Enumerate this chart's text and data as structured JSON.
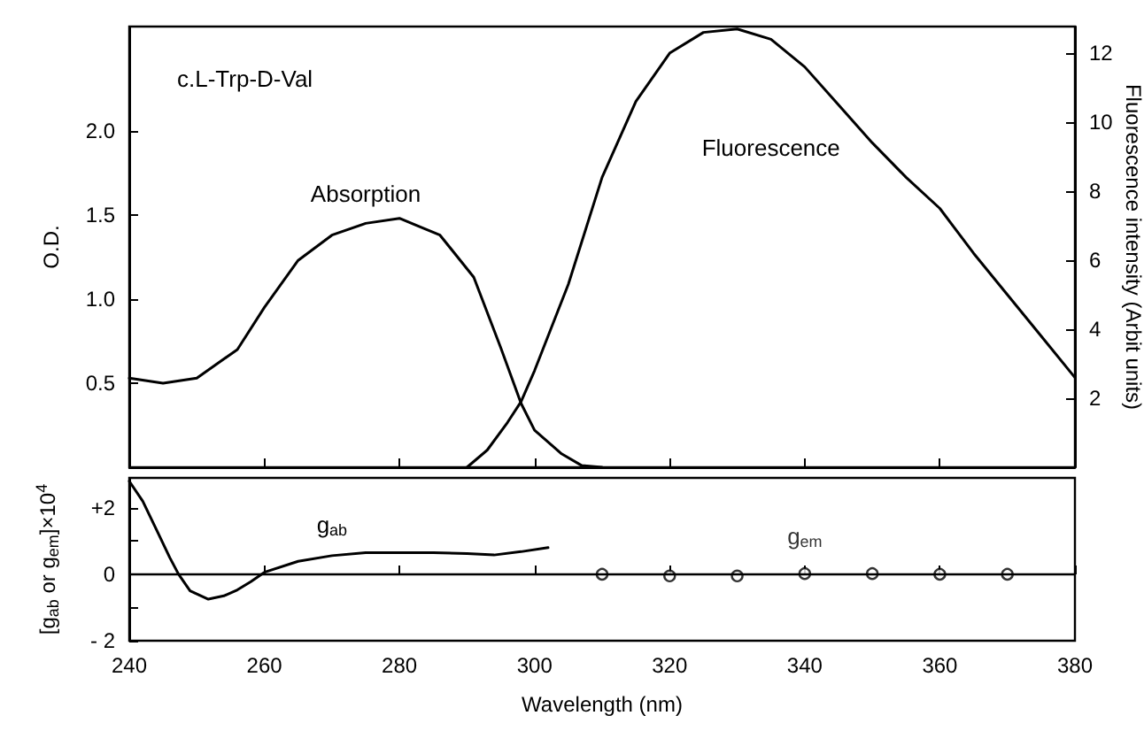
{
  "chart_data": [
    {
      "type": "line",
      "ylabel": "O.D.",
      "y2label": "Fluorescence intensity (Arbit units)",
      "annotations": [
        "c.L-Trp-D-Val"
      ],
      "xlim": [
        240,
        380
      ],
      "xticks": [
        240,
        260,
        280,
        300,
        320,
        340,
        360,
        380
      ],
      "ylim": [
        0,
        2.62
      ],
      "yticks": [
        0.5,
        {
          "value": 1,
          "label": "1.0"
        },
        1.5,
        {
          "value": 2,
          "label": "2.0"
        }
      ],
      "y2lim": [
        0,
        12.77
      ],
      "y2ticks": [
        2,
        4,
        6,
        8,
        10,
        12
      ],
      "tick_labels": "y",
      "marker": "none",
      "line_style": "solid",
      "series": [
        {
          "name": "Absorption",
          "color": "#000000",
          "x": [
            240,
            245,
            250,
            256,
            260,
            265,
            270,
            275,
            280,
            286,
            291,
            295,
            298,
            300,
            304,
            307,
            310
          ],
          "values": [
            0.53,
            0.5,
            0.53,
            0.7,
            0.95,
            1.23,
            1.38,
            1.45,
            1.48,
            1.38,
            1.13,
            0.71,
            0.38,
            0.22,
            0.08,
            0.01,
            0
          ]
        },
        {
          "name": "Fluorescence",
          "color": "#000000",
          "axis": "y2",
          "x": [
            290,
            293,
            296,
            298,
            300,
            305,
            310,
            315,
            320,
            325,
            330,
            335,
            340,
            345,
            350,
            355,
            360,
            365,
            370,
            375,
            380
          ],
          "values": [
            0,
            0.5,
            1.3,
            1.9,
            2.8,
            5.3,
            8.4,
            10.6,
            12,
            12.6,
            12.7,
            12.4,
            11.6,
            10.5,
            9.4,
            8.4,
            7.5,
            6.2,
            5,
            3.8,
            2.6
          ]
        }
      ]
    },
    {
      "type": "line",
      "xlabel": "Wavelength (nm)",
      "ylabel": "[g$_{ab}$ or g$_{em}$]×10$^{4}$",
      "xlim": [
        240,
        380
      ],
      "xticks": [
        240,
        260,
        280,
        300,
        320,
        340,
        360,
        380
      ],
      "ylim": [
        -2,
        2.9
      ],
      "yticks": [
        {
          "value": -2,
          "label": "- 2"
        },
        {
          "value": -1,
          "label": null
        },
        0,
        {
          "value": 1,
          "label": null
        },
        {
          "value": 2,
          "label": "+2"
        }
      ],
      "marker": "none",
      "line_style": "solid",
      "ref_lines": [
        {
          "axis": "y",
          "value": 0,
          "color": "#000000"
        }
      ],
      "series": [
        {
          "name": "g$_{ab}$",
          "color": "#000000",
          "x": [
            240,
            242,
            244,
            246,
            247.3,
            249,
            251.7,
            254,
            256,
            258,
            260,
            265,
            270,
            275,
            280,
            285,
            290,
            294,
            298,
            302
          ],
          "values": [
            2.8,
            2.2,
            1.35,
            0.5,
            0,
            -0.5,
            -0.75,
            -0.65,
            -0.47,
            -0.22,
            0.06,
            0.39,
            0.56,
            0.65,
            0.65,
            0.65,
            0.62,
            0.58,
            0.68,
            0.8
          ]
        },
        {
          "name": "g$_{em}$",
          "type": "scatter",
          "marker": "circle",
          "color": "#000000",
          "x": [
            310,
            320,
            330,
            340,
            350,
            360,
            370
          ],
          "values": [
            0,
            -0.05,
            -0.05,
            0.02,
            0.02,
            0,
            0
          ]
        }
      ]
    }
  ]
}
